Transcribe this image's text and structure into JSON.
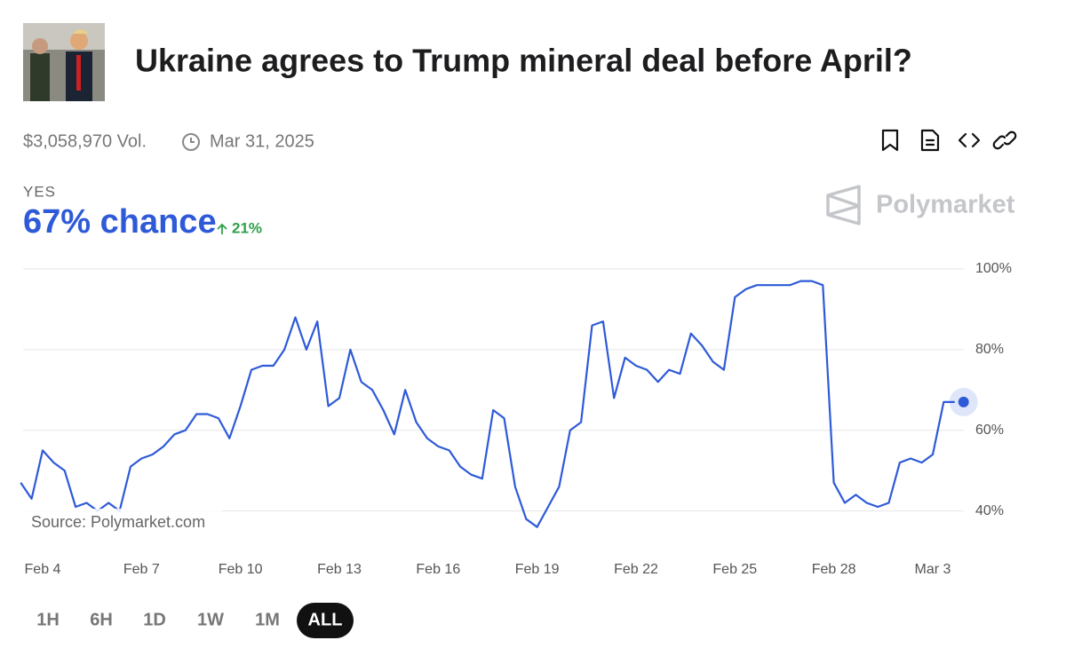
{
  "header": {
    "title": "Ukraine agrees to Trump mineral deal before April?",
    "volume": "$3,058,970 Vol.",
    "end_date": "Mar 31, 2025"
  },
  "outcome": {
    "name": "YES",
    "chance": "67% chance",
    "change": "21%"
  },
  "brand": "Polymarket",
  "source": "Source: Polymarket.com",
  "ranges": [
    "1H",
    "6H",
    "1D",
    "1W",
    "1M",
    "ALL"
  ],
  "chart_data": {
    "type": "line",
    "color": "#2e5ad8",
    "categories": [
      null,
      null,
      "Feb 4",
      null,
      null,
      null,
      null,
      null,
      null,
      null,
      null,
      "Feb 7",
      null,
      null,
      null,
      null,
      null,
      null,
      null,
      null,
      "Feb 10",
      null,
      null,
      null,
      null,
      null,
      null,
      null,
      null,
      "Feb 13",
      null,
      null,
      null,
      null,
      null,
      null,
      null,
      null,
      "Feb 16",
      null,
      null,
      null,
      null,
      null,
      null,
      null,
      null,
      "Feb 19",
      null,
      null,
      null,
      null,
      null,
      null,
      null,
      null,
      "Feb 22",
      null,
      null,
      null,
      null,
      null,
      null,
      null,
      null,
      "Feb 25",
      null,
      null,
      null,
      null,
      null,
      null,
      null,
      null,
      "Feb 28",
      null,
      null,
      null,
      null,
      null,
      null,
      null,
      null,
      "Mar 3",
      null,
      null
    ],
    "values": [
      47,
      43,
      55,
      52,
      50,
      41,
      42,
      40,
      42,
      40,
      51,
      53,
      54,
      56,
      59,
      60,
      64,
      64,
      63,
      58,
      66,
      75,
      76,
      76,
      80,
      88,
      80,
      87,
      66,
      68,
      80,
      72,
      70,
      65,
      59,
      70,
      62,
      58,
      56,
      55,
      51,
      49,
      48,
      65,
      63,
      46,
      38,
      36,
      41,
      46,
      60,
      62,
      86,
      87,
      68,
      78,
      76,
      75,
      72,
      75,
      74,
      84,
      81,
      77,
      75,
      93,
      95,
      96,
      96,
      96,
      96,
      97,
      97,
      96,
      47,
      42,
      44,
      42,
      41,
      42,
      52,
      53,
      52,
      54,
      67,
      67
    ],
    "ylim": [
      30,
      100
    ],
    "yticks": [
      {
        "value": 40,
        "label": "40%"
      },
      {
        "value": 60,
        "label": "60%"
      },
      {
        "value": 80,
        "label": "80%"
      },
      {
        "value": 100,
        "label": "100%"
      }
    ],
    "grid": true
  }
}
